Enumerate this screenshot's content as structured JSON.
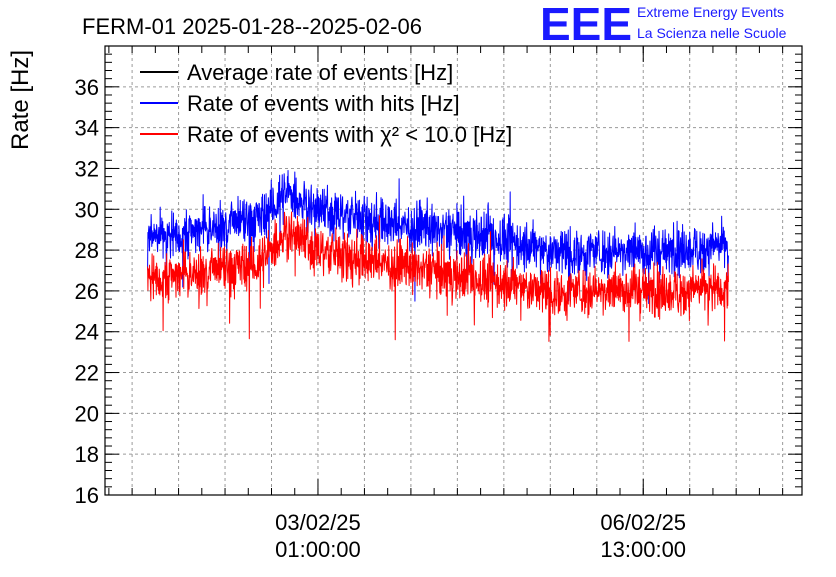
{
  "chart_data": {
    "type": "line",
    "title": "FERM-01 2025-01-28--2025-02-06",
    "xlabel": "",
    "ylabel": "Rate [Hz]",
    "ylim": [
      16,
      38
    ],
    "y_ticks": [
      16,
      18,
      20,
      22,
      24,
      26,
      28,
      30,
      32,
      34,
      36
    ],
    "x_range_hours": [
      -55,
      125
    ],
    "x_ticks": [
      {
        "hours_from_first": 0,
        "date": "03/02/25",
        "time": "01:00:00"
      },
      {
        "hours_from_first": 84,
        "date": "06/02/25",
        "time": "13:00:00"
      }
    ],
    "grid": true,
    "legend_position": "top-left",
    "logo": {
      "text": "EEE",
      "line1": "Extreme Energy Events",
      "line2": "La Scienza nelle Scuole",
      "color": "#1a1aff"
    },
    "series": [
      {
        "name": "Average rate of events [Hz]",
        "color": "#000000",
        "x_start_hours": -44,
        "x_end_hours": 106,
        "control_x": [
          -44,
          -30,
          -15,
          -8,
          0,
          10,
          20,
          30,
          40,
          50,
          60,
          70,
          80,
          90,
          100,
          106
        ],
        "control_y": [
          26.6,
          26.9,
          27.3,
          29.0,
          28.0,
          27.6,
          27.2,
          27.0,
          26.6,
          26.3,
          25.9,
          26.0,
          26.1,
          25.9,
          26.1,
          26.2
        ],
        "noise": 0.05,
        "visible": false
      },
      {
        "name": "Rate of events with hits [Hz]",
        "color": "#0000ff",
        "x_start_hours": -44,
        "x_end_hours": 106,
        "control_x": [
          -44,
          -30,
          -15,
          -8,
          0,
          10,
          20,
          30,
          40,
          50,
          60,
          70,
          80,
          90,
          100,
          106
        ],
        "control_y": [
          28.5,
          29.0,
          29.5,
          30.8,
          30.0,
          29.6,
          29.2,
          29.0,
          28.8,
          28.4,
          27.9,
          27.9,
          28.0,
          27.9,
          28.1,
          28.2
        ],
        "noise": 0.6
      },
      {
        "name": "Rate of events with χ² < 10.0 [Hz]",
        "color": "#ff0000",
        "x_start_hours": -44,
        "x_end_hours": 106,
        "control_x": [
          -44,
          -30,
          -15,
          -8,
          0,
          10,
          20,
          30,
          40,
          50,
          60,
          70,
          80,
          90,
          100,
          106
        ],
        "control_y": [
          26.6,
          26.9,
          27.3,
          29.0,
          28.0,
          27.6,
          27.2,
          27.0,
          26.6,
          26.3,
          25.9,
          26.0,
          26.1,
          25.9,
          26.1,
          26.2
        ],
        "noise": 0.6
      }
    ]
  }
}
